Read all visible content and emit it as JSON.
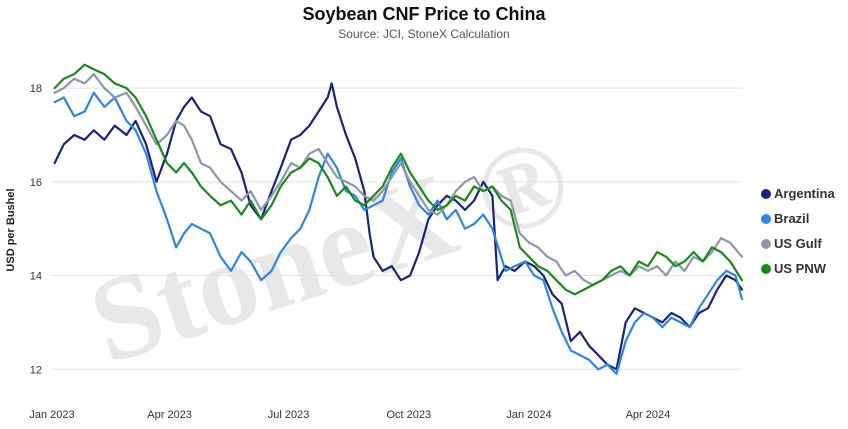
{
  "chart_data": {
    "type": "line",
    "title": "Soybean CNF Price to China",
    "subtitle": "Source: JCI, StoneX Calculation",
    "ylabel": "USD per Bushel",
    "xlabel": "",
    "ylim": [
      11.6,
      18.6
    ],
    "yticks": [
      12,
      14,
      16,
      18
    ],
    "xticks": [
      "Jan 2023",
      "Apr 2023",
      "Jul 2023",
      "Oct 2023",
      "Jan 2024",
      "Apr 2024"
    ],
    "x_start": "2023-01-01",
    "x_end": "2024-06-12",
    "grid": true,
    "legend_position": "right",
    "watermark": "StoneX ®",
    "series": [
      {
        "name": "Argentina",
        "color": "#1a237e",
        "x": [
          "2023-01-03",
          "2023-01-10",
          "2023-01-18",
          "2023-01-26",
          "2023-02-02",
          "2023-02-10",
          "2023-02-18",
          "2023-02-27",
          "2023-03-06",
          "2023-03-14",
          "2023-03-22",
          "2023-03-30",
          "2023-04-06",
          "2023-04-12",
          "2023-04-18",
          "2023-04-25",
          "2023-05-02",
          "2023-05-10",
          "2023-05-18",
          "2023-05-26",
          "2023-06-02",
          "2023-06-10",
          "2023-06-18",
          "2023-06-25",
          "2023-07-03",
          "2023-07-10",
          "2023-07-17",
          "2023-07-24",
          "2023-07-31",
          "2023-08-03",
          "2023-08-07",
          "2023-08-14",
          "2023-08-21",
          "2023-08-28",
          "2023-09-01",
          "2023-09-04",
          "2023-09-11",
          "2023-09-18",
          "2023-09-25",
          "2023-10-02",
          "2023-10-09",
          "2023-10-16",
          "2023-10-23",
          "2023-10-30",
          "2023-11-06",
          "2023-11-13",
          "2023-11-20",
          "2023-11-27",
          "2023-12-04",
          "2023-12-08",
          "2023-12-14",
          "2023-12-21",
          "2023-12-29",
          "2024-01-05",
          "2024-01-12",
          "2024-01-19",
          "2024-01-26",
          "2024-02-02",
          "2024-02-09",
          "2024-02-16",
          "2024-02-23",
          "2024-03-01",
          "2024-03-08",
          "2024-03-15",
          "2024-03-22",
          "2024-03-29",
          "2024-04-05",
          "2024-04-12",
          "2024-04-19",
          "2024-04-26",
          "2024-05-03",
          "2024-05-10",
          "2024-05-17",
          "2024-05-24",
          "2024-05-31",
          "2024-06-07",
          "2024-06-12"
        ],
        "values": [
          16.4,
          16.8,
          17.0,
          16.9,
          17.1,
          16.9,
          17.2,
          17.0,
          17.3,
          16.8,
          16.0,
          16.6,
          17.3,
          17.6,
          17.8,
          17.5,
          17.4,
          16.8,
          16.7,
          16.2,
          15.5,
          15.2,
          15.8,
          16.3,
          16.9,
          17.0,
          17.2,
          17.5,
          17.8,
          18.1,
          17.6,
          17.0,
          16.5,
          15.8,
          14.9,
          14.4,
          14.1,
          14.2,
          13.9,
          14.0,
          14.5,
          15.2,
          15.5,
          15.7,
          15.6,
          15.4,
          15.6,
          16.0,
          15.7,
          13.9,
          14.2,
          14.1,
          14.3,
          14.2,
          14.0,
          13.6,
          13.4,
          12.6,
          12.8,
          12.5,
          12.3,
          12.1,
          12.0,
          13.0,
          13.3,
          13.2,
          13.1,
          13.0,
          13.2,
          13.1,
          12.9,
          13.2,
          13.3,
          13.7,
          14.0,
          13.9,
          13.7
        ]
      },
      {
        "name": "Brazil",
        "color": "#2f86e0",
        "x": [
          "2023-01-03",
          "2023-01-10",
          "2023-01-18",
          "2023-01-26",
          "2023-02-02",
          "2023-02-10",
          "2023-02-18",
          "2023-02-27",
          "2023-03-06",
          "2023-03-14",
          "2023-03-22",
          "2023-03-30",
          "2023-04-06",
          "2023-04-12",
          "2023-04-18",
          "2023-04-25",
          "2023-05-02",
          "2023-05-10",
          "2023-05-18",
          "2023-05-26",
          "2023-06-02",
          "2023-06-10",
          "2023-06-18",
          "2023-06-25",
          "2023-07-03",
          "2023-07-10",
          "2023-07-17",
          "2023-07-24",
          "2023-07-31",
          "2023-08-07",
          "2023-08-14",
          "2023-08-21",
          "2023-08-28",
          "2023-09-04",
          "2023-09-11",
          "2023-09-18",
          "2023-09-25",
          "2023-10-02",
          "2023-10-09",
          "2023-10-16",
          "2023-10-23",
          "2023-10-30",
          "2023-11-06",
          "2023-11-13",
          "2023-11-20",
          "2023-11-27",
          "2023-12-04",
          "2023-12-14",
          "2023-12-21",
          "2023-12-29",
          "2024-01-05",
          "2024-01-12",
          "2024-01-19",
          "2024-01-26",
          "2024-02-02",
          "2024-02-09",
          "2024-02-16",
          "2024-02-23",
          "2024-03-01",
          "2024-03-08",
          "2024-03-15",
          "2024-03-22",
          "2024-03-29",
          "2024-04-05",
          "2024-04-12",
          "2024-04-19",
          "2024-04-26",
          "2024-05-03",
          "2024-05-10",
          "2024-05-17",
          "2024-05-24",
          "2024-05-31",
          "2024-06-07",
          "2024-06-12"
        ],
        "values": [
          17.7,
          17.8,
          17.4,
          17.5,
          17.9,
          17.6,
          17.8,
          17.3,
          17.1,
          16.6,
          15.8,
          15.2,
          14.6,
          14.9,
          15.1,
          15.0,
          14.9,
          14.4,
          14.1,
          14.5,
          14.3,
          13.9,
          14.1,
          14.5,
          14.8,
          15.0,
          15.4,
          16.1,
          16.6,
          16.3,
          15.8,
          15.7,
          15.4,
          15.5,
          15.6,
          16.2,
          16.5,
          15.9,
          15.5,
          15.3,
          15.6,
          15.2,
          15.4,
          15.0,
          15.1,
          15.3,
          15.0,
          14.1,
          14.2,
          14.3,
          14.0,
          13.9,
          13.3,
          12.8,
          12.4,
          12.3,
          12.2,
          12.0,
          12.1,
          11.9,
          12.6,
          13.0,
          13.2,
          13.1,
          12.9,
          13.1,
          13.0,
          12.9,
          13.3,
          13.6,
          13.9,
          14.1,
          14.0,
          13.5
        ]
      },
      {
        "name": "US Gulf",
        "color": "#8e96a8",
        "x": [
          "2023-01-03",
          "2023-01-10",
          "2023-01-18",
          "2023-01-26",
          "2023-02-02",
          "2023-02-10",
          "2023-02-18",
          "2023-02-27",
          "2023-03-06",
          "2023-03-14",
          "2023-03-22",
          "2023-03-30",
          "2023-04-06",
          "2023-04-12",
          "2023-04-18",
          "2023-04-25",
          "2023-05-02",
          "2023-05-10",
          "2023-05-18",
          "2023-05-26",
          "2023-06-02",
          "2023-06-10",
          "2023-06-18",
          "2023-06-25",
          "2023-07-03",
          "2023-07-10",
          "2023-07-17",
          "2023-07-24",
          "2023-07-31",
          "2023-08-07",
          "2023-08-14",
          "2023-08-21",
          "2023-08-28",
          "2023-09-04",
          "2023-09-11",
          "2023-09-18",
          "2023-09-25",
          "2023-10-02",
          "2023-10-09",
          "2023-10-16",
          "2023-10-23",
          "2023-10-30",
          "2023-11-06",
          "2023-11-13",
          "2023-11-20",
          "2023-11-27",
          "2023-12-04",
          "2023-12-11",
          "2023-12-18",
          "2023-12-25",
          "2024-01-01",
          "2024-01-08",
          "2024-01-15",
          "2024-01-22",
          "2024-01-29",
          "2024-02-05",
          "2024-02-12",
          "2024-02-19",
          "2024-02-26",
          "2024-03-04",
          "2024-03-11",
          "2024-03-18",
          "2024-03-25",
          "2024-04-01",
          "2024-04-08",
          "2024-04-15",
          "2024-04-22",
          "2024-04-29",
          "2024-05-06",
          "2024-05-13",
          "2024-05-20",
          "2024-05-27",
          "2024-06-03",
          "2024-06-12"
        ],
        "values": [
          17.9,
          18.0,
          18.2,
          18.1,
          18.3,
          18.0,
          17.8,
          17.9,
          17.6,
          17.2,
          16.8,
          17.0,
          17.3,
          17.2,
          16.9,
          16.4,
          16.3,
          16.0,
          15.8,
          15.6,
          15.8,
          15.4,
          15.7,
          16.0,
          16.4,
          16.3,
          16.6,
          16.7,
          16.4,
          16.1,
          16.0,
          15.9,
          15.7,
          15.6,
          15.8,
          16.1,
          16.4,
          16.0,
          15.7,
          15.4,
          15.3,
          15.5,
          15.8,
          16.0,
          16.1,
          15.8,
          15.9,
          15.7,
          15.6,
          14.9,
          14.7,
          14.6,
          14.4,
          14.3,
          14.0,
          14.1,
          13.9,
          13.8,
          13.9,
          14.0,
          14.1,
          14.0,
          14.2,
          14.1,
          14.2,
          14.0,
          14.3,
          14.1,
          14.4,
          14.3,
          14.5,
          14.8,
          14.7,
          14.4
        ]
      },
      {
        "name": "US PNW",
        "color": "#1a8a1a",
        "x": [
          "2023-01-03",
          "2023-01-10",
          "2023-01-18",
          "2023-01-26",
          "2023-02-02",
          "2023-02-10",
          "2023-02-18",
          "2023-02-27",
          "2023-03-06",
          "2023-03-14",
          "2023-03-22",
          "2023-03-30",
          "2023-04-06",
          "2023-04-12",
          "2023-04-18",
          "2023-04-25",
          "2023-05-02",
          "2023-05-10",
          "2023-05-18",
          "2023-05-26",
          "2023-06-02",
          "2023-06-10",
          "2023-06-18",
          "2023-06-25",
          "2023-07-03",
          "2023-07-10",
          "2023-07-17",
          "2023-07-24",
          "2023-07-31",
          "2023-08-07",
          "2023-08-14",
          "2023-08-21",
          "2023-08-28",
          "2023-09-04",
          "2023-09-11",
          "2023-09-18",
          "2023-09-25",
          "2023-10-02",
          "2023-10-09",
          "2023-10-16",
          "2023-10-23",
          "2023-10-30",
          "2023-11-06",
          "2023-11-13",
          "2023-11-20",
          "2023-11-27",
          "2023-12-04",
          "2023-12-11",
          "2023-12-18",
          "2023-12-25",
          "2024-01-01",
          "2024-01-08",
          "2024-01-15",
          "2024-01-22",
          "2024-01-29",
          "2024-02-05",
          "2024-02-12",
          "2024-02-19",
          "2024-02-26",
          "2024-03-04",
          "2024-03-11",
          "2024-03-18",
          "2024-03-25",
          "2024-04-01",
          "2024-04-08",
          "2024-04-15",
          "2024-04-22",
          "2024-04-29",
          "2024-05-06",
          "2024-05-13",
          "2024-05-20",
          "2024-05-27",
          "2024-06-03",
          "2024-06-12"
        ],
        "values": [
          18.0,
          18.2,
          18.3,
          18.5,
          18.4,
          18.3,
          18.1,
          18.0,
          17.8,
          17.4,
          16.9,
          16.4,
          16.2,
          16.4,
          16.2,
          15.9,
          15.7,
          15.5,
          15.6,
          15.3,
          15.6,
          15.2,
          15.5,
          15.9,
          16.2,
          16.3,
          16.5,
          16.4,
          16.1,
          15.7,
          15.9,
          15.6,
          15.5,
          15.7,
          15.9,
          16.3,
          16.6,
          16.2,
          15.9,
          15.6,
          15.4,
          15.5,
          15.7,
          15.6,
          15.9,
          15.8,
          15.9,
          15.6,
          15.4,
          14.6,
          14.4,
          14.2,
          14.1,
          13.9,
          13.7,
          13.6,
          13.7,
          13.8,
          13.9,
          14.1,
          14.2,
          14.0,
          14.3,
          14.2,
          14.5,
          14.4,
          14.2,
          14.3,
          14.5,
          14.3,
          14.6,
          14.5,
          14.3,
          13.9
        ]
      }
    ]
  }
}
